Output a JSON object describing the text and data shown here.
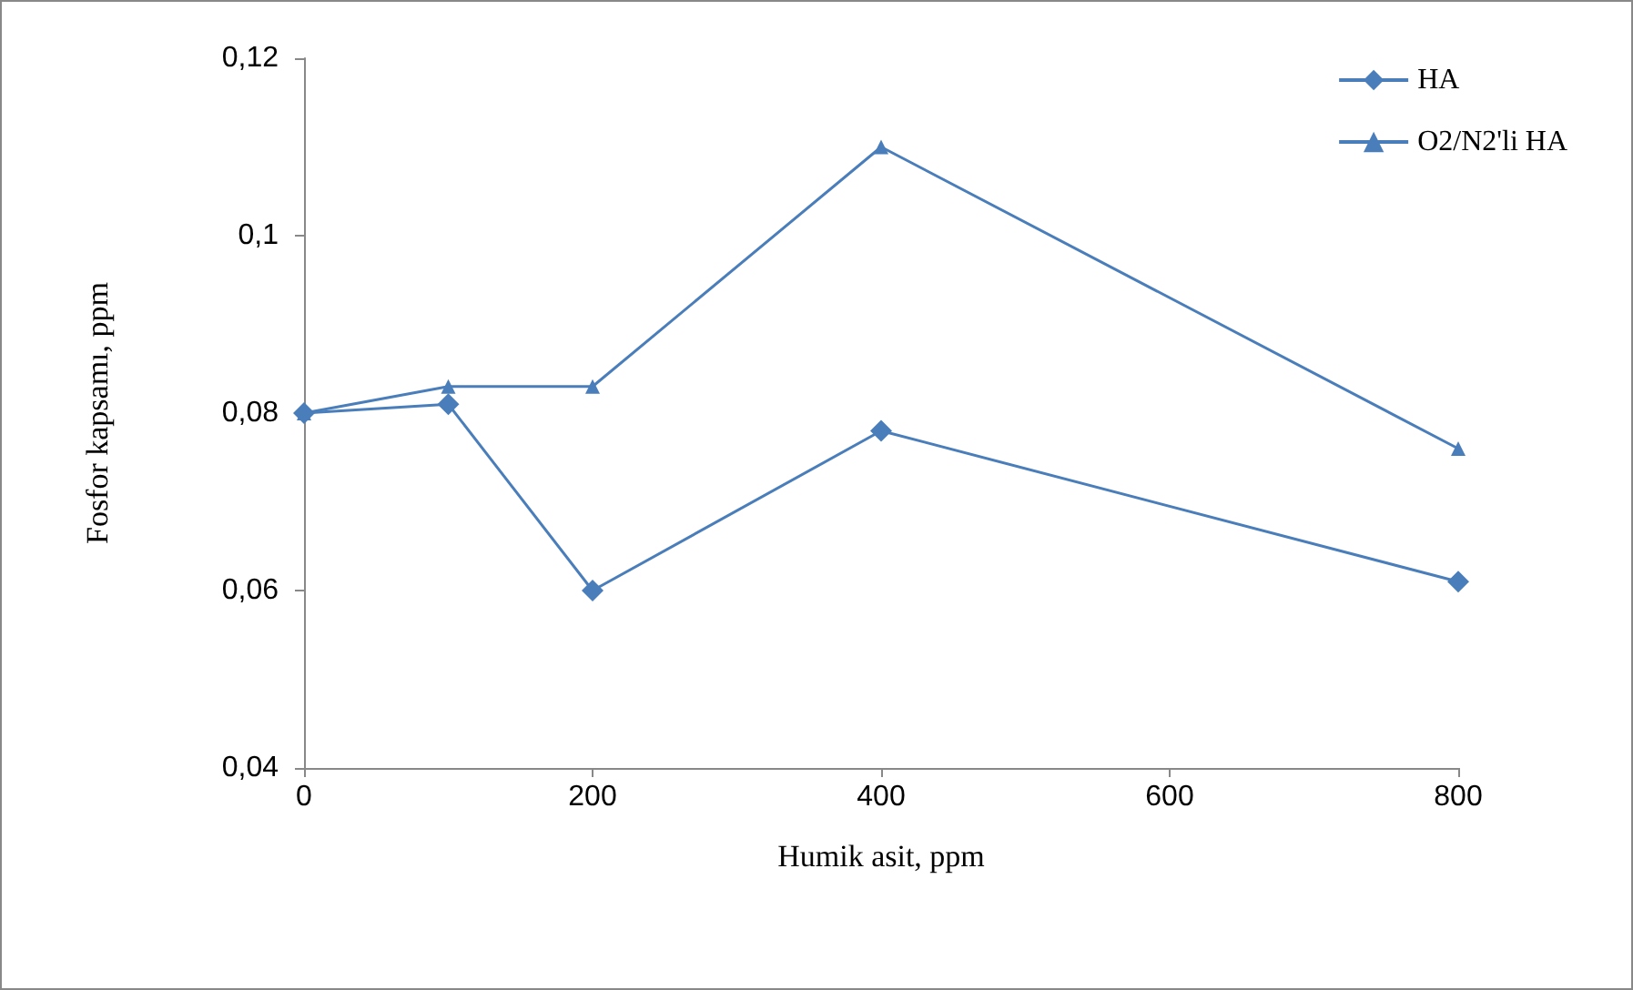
{
  "chart_data": {
    "type": "line",
    "xlabel": "Humik asit, ppm",
    "ylabel": "Fosfor kapsamı, ppm",
    "x": [
      0,
      100,
      200,
      400,
      800
    ],
    "series": [
      {
        "name": "HA",
        "color": "#4a7ebb",
        "marker": "diamond",
        "values": [
          0.08,
          0.081,
          0.06,
          0.078,
          0.061
        ]
      },
      {
        "name": "O2/N2'li HA",
        "color": "#4a7ebb",
        "marker": "triangle",
        "values": [
          0.08,
          0.083,
          0.083,
          0.11,
          0.076
        ]
      }
    ],
    "xlim": [
      0,
      800
    ],
    "xticks": [
      0,
      200,
      400,
      600,
      800
    ],
    "ylim": [
      0.04,
      0.12
    ],
    "yticks": [
      {
        "value": 0.04,
        "label": "0,04"
      },
      {
        "value": 0.06,
        "label": "0,06"
      },
      {
        "value": 0.08,
        "label": "0,08"
      },
      {
        "value": 0.1,
        "label": "0,1"
      },
      {
        "value": 0.12,
        "label": "0,12"
      }
    ],
    "grid": false,
    "legend": "top right",
    "line_style": "solid"
  }
}
